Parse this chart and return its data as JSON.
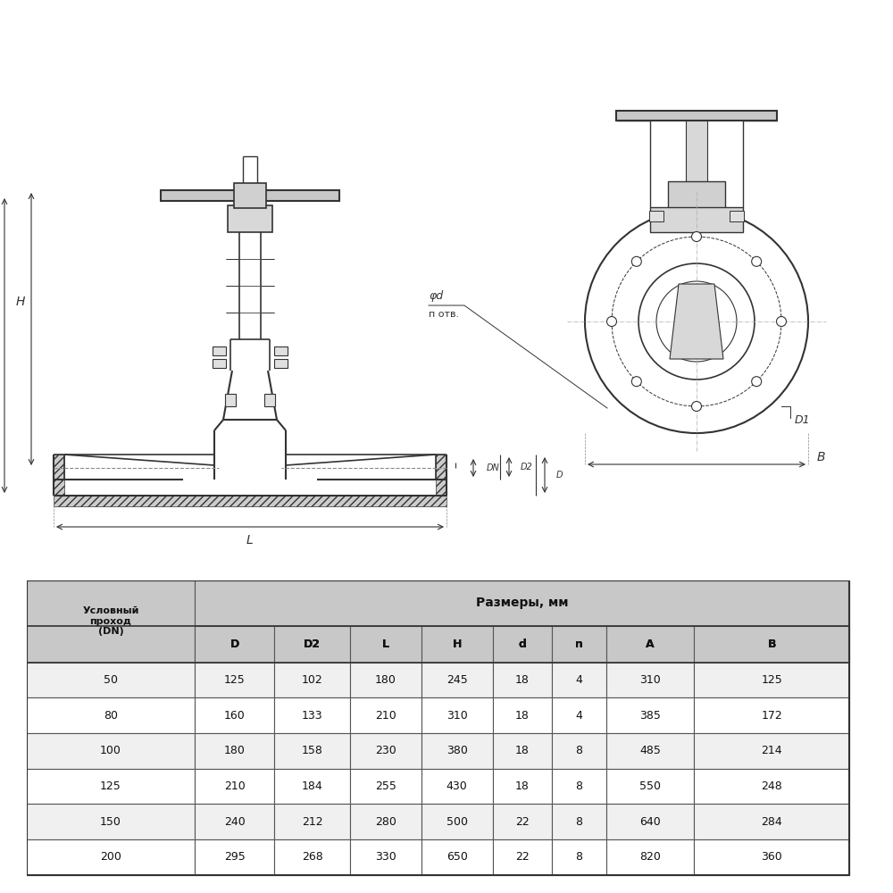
{
  "title": "",
  "background_color": "#ffffff",
  "table_header_row1": [
    "Условный\nпроход\n(DN)",
    "Размеры, мм"
  ],
  "table_header_row2": [
    "",
    "D",
    "D2",
    "L",
    "H",
    "d",
    "n",
    "A",
    "B"
  ],
  "table_data": [
    [
      "50",
      "125",
      "102",
      "180",
      "245",
      "18",
      "4",
      "310",
      "125"
    ],
    [
      "80",
      "160",
      "133",
      "210",
      "310",
      "18",
      "4",
      "385",
      "172"
    ],
    [
      "100",
      "180",
      "158",
      "230",
      "380",
      "18",
      "8",
      "485",
      "214"
    ],
    [
      "125",
      "210",
      "184",
      "255",
      "430",
      "18",
      "8",
      "550",
      "248"
    ],
    [
      "150",
      "240",
      "212",
      "280",
      "500",
      "22",
      "8",
      "640",
      "284"
    ],
    [
      "200",
      "295",
      "268",
      "330",
      "650",
      "22",
      "8",
      "820",
      "360"
    ]
  ],
  "col_header_bg": "#d0d0d0",
  "row_bg_even": "#f0f0f0",
  "row_bg_odd": "#ffffff",
  "table_border_color": "#555555",
  "drawing_bg": "#ffffff",
  "line_color": "#333333",
  "dim_color": "#333333",
  "fill_color": "#cccccc",
  "hatch_color": "#555555"
}
